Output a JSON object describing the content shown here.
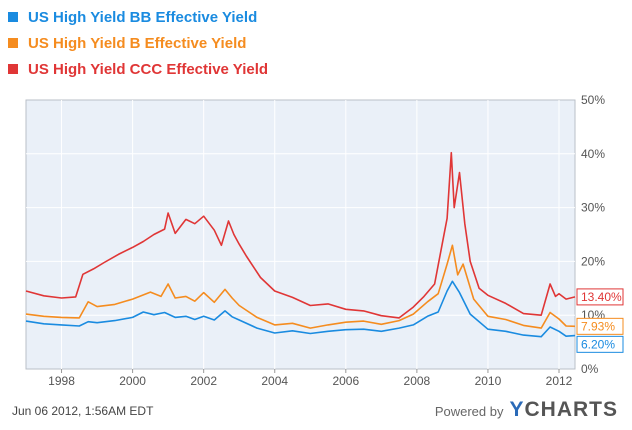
{
  "chart_data": {
    "type": "line",
    "title": "",
    "xlabel": "",
    "ylabel": "",
    "xlim": [
      1997.0,
      2012.45
    ],
    "ylim": [
      0,
      50
    ],
    "grid": true,
    "x_tick_labels": [
      "1998",
      "2000",
      "2002",
      "2004",
      "2006",
      "2008",
      "2010",
      "2012"
    ],
    "y_tick_labels": [
      "0%",
      "10%",
      "20%",
      "30%",
      "40%",
      "50%"
    ],
    "legend_position": "top-left",
    "series": [
      {
        "name": "US High Yield BB Effective Yield",
        "color": "#1a8be0",
        "last_value_label": "6.20%",
        "points": [
          [
            1997.0,
            8.9
          ],
          [
            1997.5,
            8.4
          ],
          [
            1998.0,
            8.2
          ],
          [
            1998.5,
            8.0
          ],
          [
            1998.75,
            8.8
          ],
          [
            1999.0,
            8.6
          ],
          [
            1999.5,
            9.0
          ],
          [
            2000.0,
            9.6
          ],
          [
            2000.3,
            10.6
          ],
          [
            2000.6,
            10.1
          ],
          [
            2000.9,
            10.5
          ],
          [
            2001.2,
            9.6
          ],
          [
            2001.5,
            9.8
          ],
          [
            2001.75,
            9.2
          ],
          [
            2002.0,
            9.8
          ],
          [
            2002.3,
            9.1
          ],
          [
            2002.6,
            10.8
          ],
          [
            2002.8,
            9.7
          ],
          [
            2003.0,
            9.1
          ],
          [
            2003.5,
            7.6
          ],
          [
            2004.0,
            6.7
          ],
          [
            2004.5,
            7.1
          ],
          [
            2005.0,
            6.6
          ],
          [
            2005.5,
            7.0
          ],
          [
            2006.0,
            7.3
          ],
          [
            2006.5,
            7.4
          ],
          [
            2007.0,
            7.0
          ],
          [
            2007.5,
            7.6
          ],
          [
            2007.9,
            8.2
          ],
          [
            2008.3,
            9.8
          ],
          [
            2008.6,
            10.6
          ],
          [
            2008.85,
            14.5
          ],
          [
            2009.0,
            16.3
          ],
          [
            2009.2,
            14.2
          ],
          [
            2009.5,
            10.2
          ],
          [
            2010.0,
            7.4
          ],
          [
            2010.5,
            7.0
          ],
          [
            2011.0,
            6.3
          ],
          [
            2011.5,
            6.0
          ],
          [
            2011.75,
            7.8
          ],
          [
            2012.0,
            7.0
          ],
          [
            2012.2,
            6.1
          ],
          [
            2012.45,
            6.2
          ]
        ]
      },
      {
        "name": "US High Yield B Effective Yield",
        "color": "#f58c1f",
        "last_value_label": "7.93%",
        "points": [
          [
            1997.0,
            10.2
          ],
          [
            1997.5,
            9.8
          ],
          [
            1998.0,
            9.6
          ],
          [
            1998.5,
            9.5
          ],
          [
            1998.75,
            12.5
          ],
          [
            1999.0,
            11.6
          ],
          [
            1999.5,
            12.0
          ],
          [
            2000.0,
            13.0
          ],
          [
            2000.5,
            14.3
          ],
          [
            2000.8,
            13.5
          ],
          [
            2001.0,
            15.8
          ],
          [
            2001.2,
            13.2
          ],
          [
            2001.5,
            13.5
          ],
          [
            2001.75,
            12.6
          ],
          [
            2002.0,
            14.2
          ],
          [
            2002.3,
            12.4
          ],
          [
            2002.6,
            14.8
          ],
          [
            2002.8,
            13.2
          ],
          [
            2003.0,
            11.8
          ],
          [
            2003.5,
            9.6
          ],
          [
            2004.0,
            8.2
          ],
          [
            2004.5,
            8.5
          ],
          [
            2005.0,
            7.6
          ],
          [
            2005.5,
            8.2
          ],
          [
            2006.0,
            8.7
          ],
          [
            2006.5,
            8.9
          ],
          [
            2007.0,
            8.3
          ],
          [
            2007.5,
            9.0
          ],
          [
            2007.9,
            10.2
          ],
          [
            2008.3,
            12.5
          ],
          [
            2008.6,
            14.0
          ],
          [
            2008.85,
            19.5
          ],
          [
            2009.0,
            23.0
          ],
          [
            2009.15,
            17.5
          ],
          [
            2009.3,
            19.5
          ],
          [
            2009.6,
            13.0
          ],
          [
            2010.0,
            9.8
          ],
          [
            2010.5,
            9.2
          ],
          [
            2011.0,
            8.1
          ],
          [
            2011.5,
            7.6
          ],
          [
            2011.75,
            10.5
          ],
          [
            2012.0,
            9.3
          ],
          [
            2012.2,
            8.0
          ],
          [
            2012.45,
            7.93
          ]
        ]
      },
      {
        "name": "US High Yield CCC Effective Yield",
        "color": "#e03636",
        "last_value_label": "13.40%",
        "points": [
          [
            1997.0,
            14.5
          ],
          [
            1997.5,
            13.6
          ],
          [
            1998.0,
            13.2
          ],
          [
            1998.4,
            13.4
          ],
          [
            1998.6,
            17.6
          ],
          [
            1998.9,
            18.6
          ],
          [
            1999.2,
            19.8
          ],
          [
            1999.6,
            21.3
          ],
          [
            2000.0,
            22.6
          ],
          [
            2000.3,
            23.7
          ],
          [
            2000.6,
            25.0
          ],
          [
            2000.9,
            26.0
          ],
          [
            2001.0,
            29.0
          ],
          [
            2001.2,
            25.2
          ],
          [
            2001.5,
            27.8
          ],
          [
            2001.75,
            27.0
          ],
          [
            2002.0,
            28.4
          ],
          [
            2002.3,
            25.8
          ],
          [
            2002.5,
            23.0
          ],
          [
            2002.7,
            27.5
          ],
          [
            2002.85,
            25.0
          ],
          [
            2003.0,
            23.2
          ],
          [
            2003.2,
            21.0
          ],
          [
            2003.6,
            17.0
          ],
          [
            2004.0,
            14.5
          ],
          [
            2004.5,
            13.3
          ],
          [
            2005.0,
            11.8
          ],
          [
            2005.5,
            12.1
          ],
          [
            2006.0,
            11.1
          ],
          [
            2006.5,
            10.8
          ],
          [
            2007.0,
            9.9
          ],
          [
            2007.5,
            9.5
          ],
          [
            2007.9,
            11.5
          ],
          [
            2008.2,
            13.5
          ],
          [
            2008.5,
            15.8
          ],
          [
            2008.75,
            24.5
          ],
          [
            2008.85,
            28.0
          ],
          [
            2008.97,
            40.2
          ],
          [
            2009.05,
            30.0
          ],
          [
            2009.2,
            36.5
          ],
          [
            2009.35,
            27.0
          ],
          [
            2009.5,
            20.0
          ],
          [
            2009.75,
            15.0
          ],
          [
            2010.0,
            13.7
          ],
          [
            2010.5,
            12.2
          ],
          [
            2011.0,
            10.3
          ],
          [
            2011.5,
            10.0
          ],
          [
            2011.75,
            15.8
          ],
          [
            2011.9,
            13.5
          ],
          [
            2012.0,
            14.0
          ],
          [
            2012.2,
            13.0
          ],
          [
            2012.45,
            13.4
          ]
        ]
      }
    ]
  },
  "footer": {
    "timestamp": "Jun 06 2012, 1:56AM EDT",
    "powered_by": "Powered by",
    "brand_y": "Y",
    "brand_rest": "CHARTS"
  }
}
